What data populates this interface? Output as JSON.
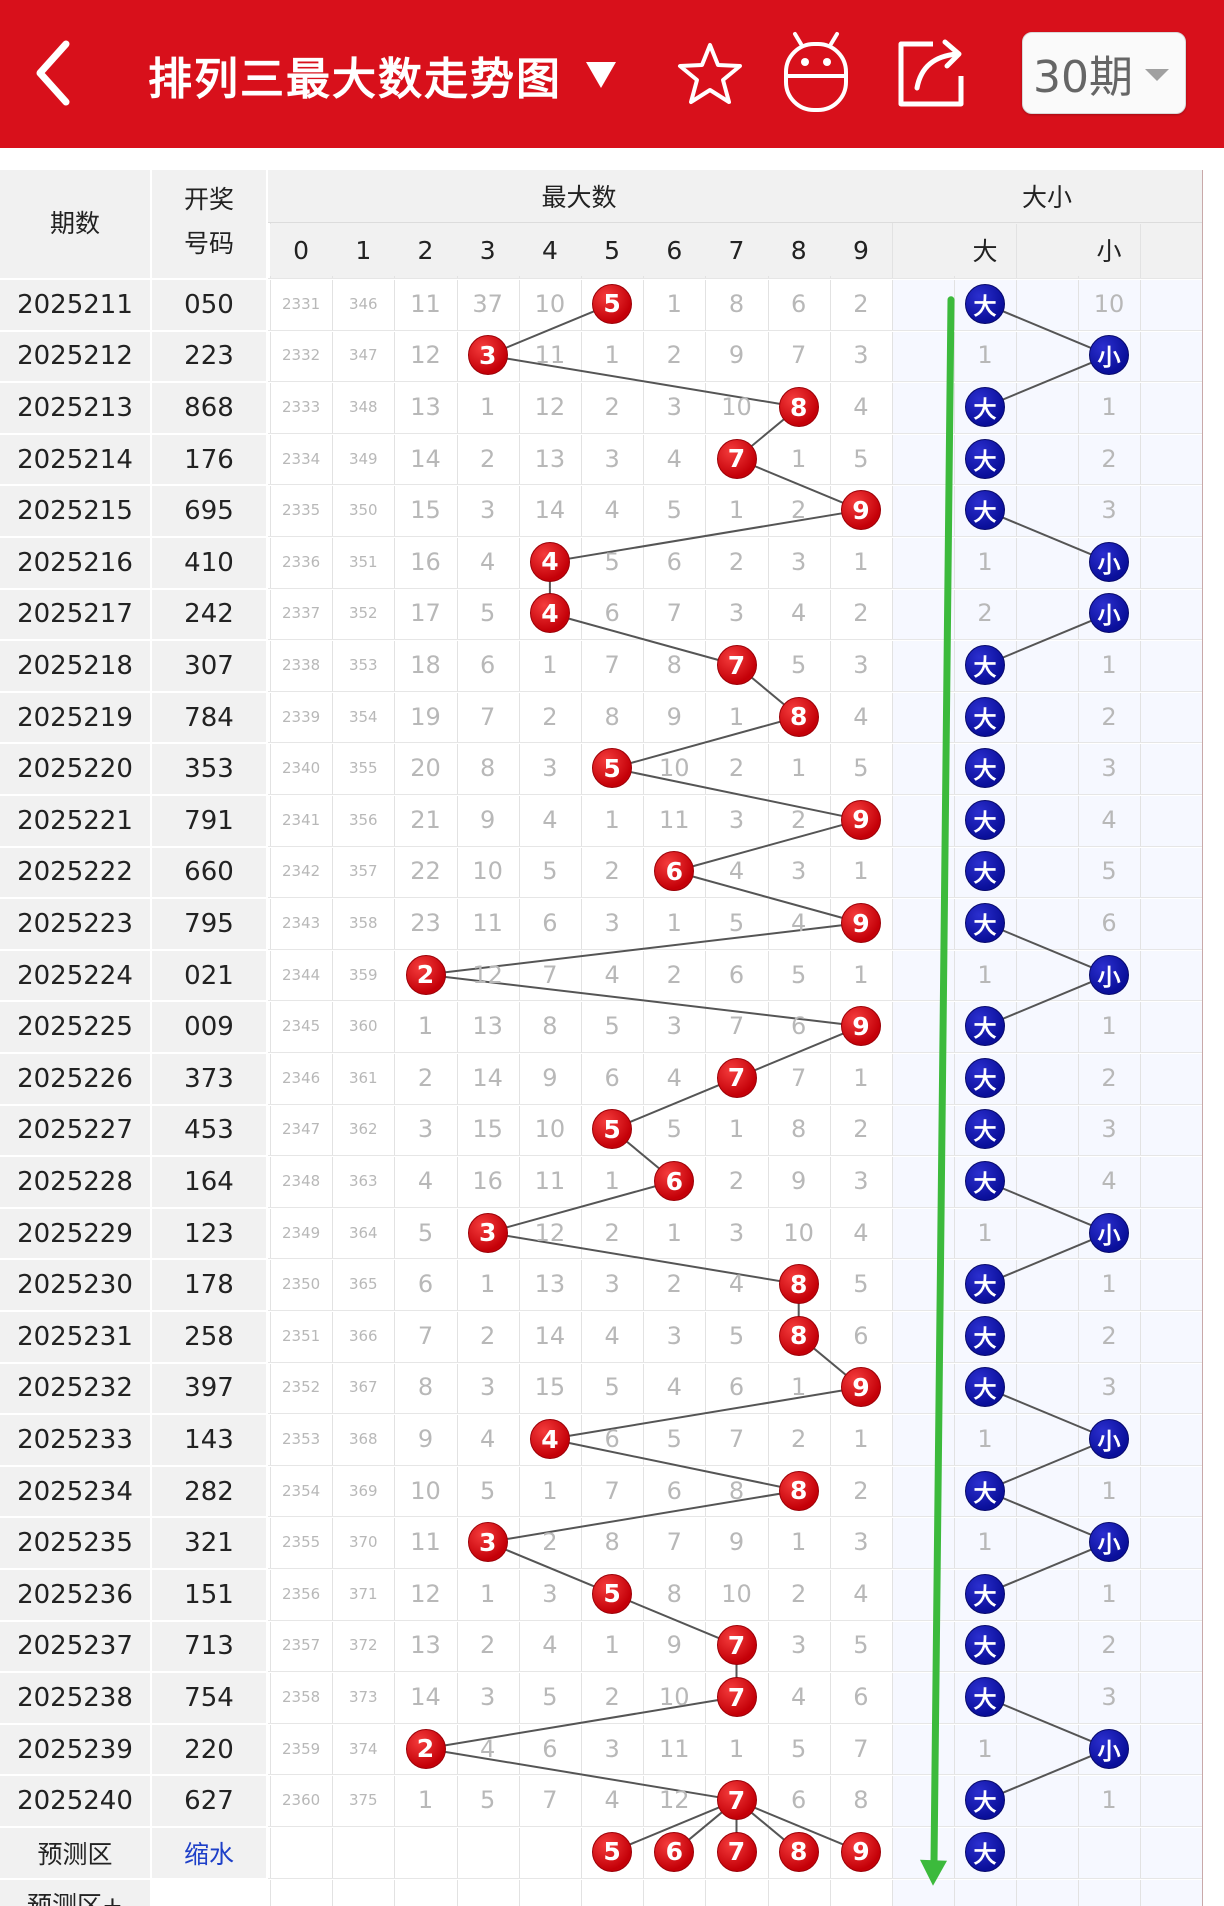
{
  "header": {
    "title": "排列三最大数走势图",
    "period_select": "30期",
    "icons": [
      "back-arrow-icon",
      "dropdown-triangle-icon",
      "star-icon",
      "robot-icon",
      "share-icon"
    ]
  },
  "table": {
    "col_period": "期数",
    "col_draw": "开奖\n号码",
    "group_max": "最大数",
    "group_size": "大小",
    "digits": [
      "0",
      "1",
      "2",
      "3",
      "4",
      "5",
      "6",
      "7",
      "8",
      "9"
    ],
    "size_big": "大",
    "size_small": "小",
    "rows": [
      {
        "period": "2025211",
        "draw": "050",
        "max": 5,
        "size": "大",
        "omits": [
          2331,
          346,
          11,
          37,
          10,
          null,
          1,
          8,
          6,
          2
        ],
        "size_omits": [
          null,
          10
        ]
      },
      {
        "period": "2025212",
        "draw": "223",
        "max": 3,
        "size": "小",
        "omits": [
          2332,
          347,
          12,
          null,
          11,
          1,
          2,
          9,
          7,
          3
        ],
        "size_omits": [
          1,
          null
        ]
      },
      {
        "period": "2025213",
        "draw": "868",
        "max": 8,
        "size": "大",
        "omits": [
          2333,
          348,
          13,
          1,
          12,
          2,
          3,
          10,
          null,
          4
        ],
        "size_omits": [
          null,
          1
        ]
      },
      {
        "period": "2025214",
        "draw": "176",
        "max": 7,
        "size": "大",
        "omits": [
          2334,
          349,
          14,
          2,
          13,
          3,
          4,
          null,
          1,
          5
        ],
        "size_omits": [
          null,
          2
        ]
      },
      {
        "period": "2025215",
        "draw": "695",
        "max": 9,
        "size": "大",
        "omits": [
          2335,
          350,
          15,
          3,
          14,
          4,
          5,
          1,
          2,
          null
        ],
        "size_omits": [
          null,
          3
        ]
      },
      {
        "period": "2025216",
        "draw": "410",
        "max": 4,
        "size": "小",
        "omits": [
          2336,
          351,
          16,
          4,
          null,
          5,
          6,
          2,
          3,
          1
        ],
        "size_omits": [
          1,
          null
        ]
      },
      {
        "period": "2025217",
        "draw": "242",
        "max": 4,
        "size": "小",
        "omits": [
          2337,
          352,
          17,
          5,
          null,
          6,
          7,
          3,
          4,
          2
        ],
        "size_omits": [
          2,
          null
        ]
      },
      {
        "period": "2025218",
        "draw": "307",
        "max": 7,
        "size": "大",
        "omits": [
          2338,
          353,
          18,
          6,
          1,
          7,
          8,
          null,
          5,
          3
        ],
        "size_omits": [
          null,
          1
        ]
      },
      {
        "period": "2025219",
        "draw": "784",
        "max": 8,
        "size": "大",
        "omits": [
          2339,
          354,
          19,
          7,
          2,
          8,
          9,
          1,
          null,
          4
        ],
        "size_omits": [
          null,
          2
        ]
      },
      {
        "period": "2025220",
        "draw": "353",
        "max": 5,
        "size": "大",
        "omits": [
          2340,
          355,
          20,
          8,
          3,
          null,
          10,
          2,
          1,
          5
        ],
        "size_omits": [
          null,
          3
        ]
      },
      {
        "period": "2025221",
        "draw": "791",
        "max": 9,
        "size": "大",
        "omits": [
          2341,
          356,
          21,
          9,
          4,
          1,
          11,
          3,
          2,
          null
        ],
        "size_omits": [
          null,
          4
        ]
      },
      {
        "period": "2025222",
        "draw": "660",
        "max": 6,
        "size": "大",
        "omits": [
          2342,
          357,
          22,
          10,
          5,
          2,
          null,
          4,
          3,
          1
        ],
        "size_omits": [
          null,
          5
        ]
      },
      {
        "period": "2025223",
        "draw": "795",
        "max": 9,
        "size": "大",
        "omits": [
          2343,
          358,
          23,
          11,
          6,
          3,
          1,
          5,
          4,
          null
        ],
        "size_omits": [
          null,
          6
        ]
      },
      {
        "period": "2025224",
        "draw": "021",
        "max": 2,
        "size": "小",
        "omits": [
          2344,
          359,
          null,
          12,
          7,
          4,
          2,
          6,
          5,
          1
        ],
        "size_omits": [
          1,
          null
        ]
      },
      {
        "period": "2025225",
        "draw": "009",
        "max": 9,
        "size": "大",
        "omits": [
          2345,
          360,
          1,
          13,
          8,
          5,
          3,
          7,
          6,
          null
        ],
        "size_omits": [
          null,
          1
        ]
      },
      {
        "period": "2025226",
        "draw": "373",
        "max": 7,
        "size": "大",
        "omits": [
          2346,
          361,
          2,
          14,
          9,
          6,
          4,
          null,
          7,
          1
        ],
        "size_omits": [
          null,
          2
        ]
      },
      {
        "period": "2025227",
        "draw": "453",
        "max": 5,
        "size": "大",
        "omits": [
          2347,
          362,
          3,
          15,
          10,
          null,
          5,
          1,
          8,
          2
        ],
        "size_omits": [
          null,
          3
        ]
      },
      {
        "period": "2025228",
        "draw": "164",
        "max": 6,
        "size": "大",
        "omits": [
          2348,
          363,
          4,
          16,
          11,
          1,
          null,
          2,
          9,
          3
        ],
        "size_omits": [
          null,
          4
        ]
      },
      {
        "period": "2025229",
        "draw": "123",
        "max": 3,
        "size": "小",
        "omits": [
          2349,
          364,
          5,
          null,
          12,
          2,
          1,
          3,
          10,
          4
        ],
        "size_omits": [
          1,
          null
        ]
      },
      {
        "period": "2025230",
        "draw": "178",
        "max": 8,
        "size": "大",
        "omits": [
          2350,
          365,
          6,
          1,
          13,
          3,
          2,
          4,
          null,
          5
        ],
        "size_omits": [
          null,
          1
        ]
      },
      {
        "period": "2025231",
        "draw": "258",
        "max": 8,
        "size": "大",
        "omits": [
          2351,
          366,
          7,
          2,
          14,
          4,
          3,
          5,
          null,
          6
        ],
        "size_omits": [
          null,
          2
        ]
      },
      {
        "period": "2025232",
        "draw": "397",
        "max": 9,
        "size": "大",
        "omits": [
          2352,
          367,
          8,
          3,
          15,
          5,
          4,
          6,
          1,
          null
        ],
        "size_omits": [
          null,
          3
        ]
      },
      {
        "period": "2025233",
        "draw": "143",
        "max": 4,
        "size": "小",
        "omits": [
          2353,
          368,
          9,
          4,
          null,
          6,
          5,
          7,
          2,
          1
        ],
        "size_omits": [
          1,
          null
        ]
      },
      {
        "period": "2025234",
        "draw": "282",
        "max": 8,
        "size": "大",
        "omits": [
          2354,
          369,
          10,
          5,
          1,
          7,
          6,
          8,
          null,
          2
        ],
        "size_omits": [
          null,
          1
        ]
      },
      {
        "period": "2025235",
        "draw": "321",
        "max": 3,
        "size": "小",
        "omits": [
          2355,
          370,
          11,
          null,
          2,
          8,
          7,
          9,
          1,
          3
        ],
        "size_omits": [
          1,
          null
        ]
      },
      {
        "period": "2025236",
        "draw": "151",
        "max": 5,
        "size": "大",
        "omits": [
          2356,
          371,
          12,
          1,
          3,
          null,
          8,
          10,
          2,
          4
        ],
        "size_omits": [
          null,
          1
        ]
      },
      {
        "period": "2025237",
        "draw": "713",
        "max": 7,
        "size": "大",
        "omits": [
          2357,
          372,
          13,
          2,
          4,
          1,
          9,
          null,
          3,
          5
        ],
        "size_omits": [
          null,
          2
        ]
      },
      {
        "period": "2025238",
        "draw": "754",
        "max": 7,
        "size": "大",
        "omits": [
          2358,
          373,
          14,
          3,
          5,
          2,
          10,
          null,
          4,
          6
        ],
        "size_omits": [
          null,
          3
        ]
      },
      {
        "period": "2025239",
        "draw": "220",
        "max": 2,
        "size": "小",
        "omits": [
          2359,
          374,
          null,
          4,
          6,
          3,
          11,
          1,
          5,
          7
        ],
        "size_omits": [
          1,
          null
        ]
      },
      {
        "period": "2025240",
        "draw": "627",
        "max": 7,
        "size": "大",
        "omits": [
          2360,
          375,
          1,
          5,
          7,
          4,
          12,
          null,
          6,
          8
        ],
        "size_omits": [
          null,
          1
        ]
      }
    ],
    "prediction": {
      "label": "预测区",
      "link": "缩水",
      "balls": [
        5,
        6,
        7,
        8,
        9
      ],
      "size": "大",
      "label2": "预测区+"
    }
  },
  "colors": {
    "header_bg": "#d8101b",
    "ball_red": "#c40008",
    "ball_blue": "#0a0f9a",
    "trend_arrow": "#3cba3c",
    "connector": "#555555",
    "omit_text": "#b8b8b8",
    "link": "#1d3fc8"
  }
}
